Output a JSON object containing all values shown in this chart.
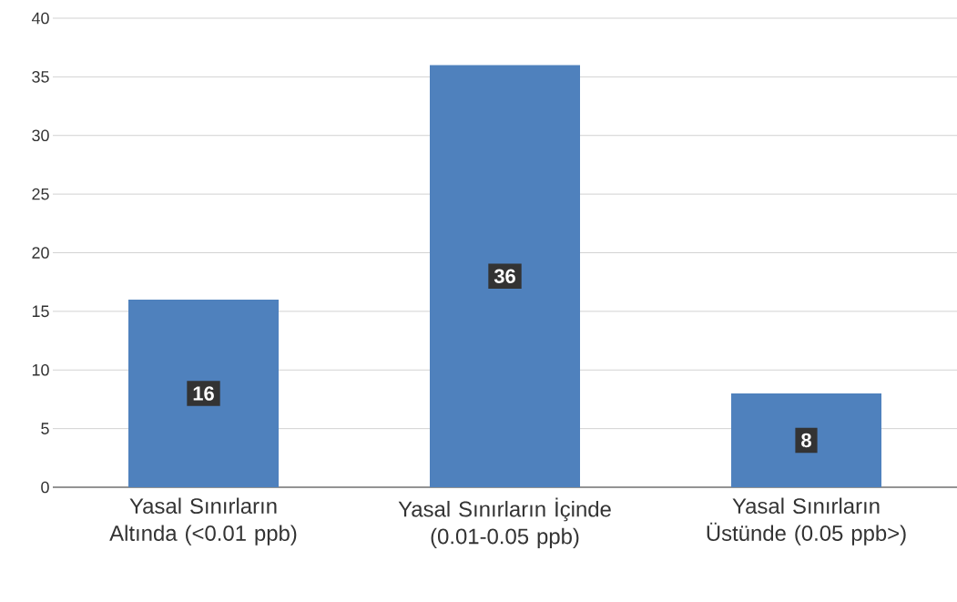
{
  "chart_data": {
    "type": "bar",
    "categories": [
      "Yasal Sınırların Altında (<0.01 ppb)",
      "Yasal Sınırların İçinde (0.01-0.05 ppb)",
      "Yasal Sınırların Üstünde (0.05 ppb>)"
    ],
    "values": [
      16,
      36,
      8
    ],
    "color": "#4f81bd",
    "ylim": [
      0,
      40
    ],
    "yticks": [
      0,
      5,
      10,
      15,
      20,
      25,
      30,
      35,
      40
    ],
    "grid": "y",
    "data_labels": true
  }
}
